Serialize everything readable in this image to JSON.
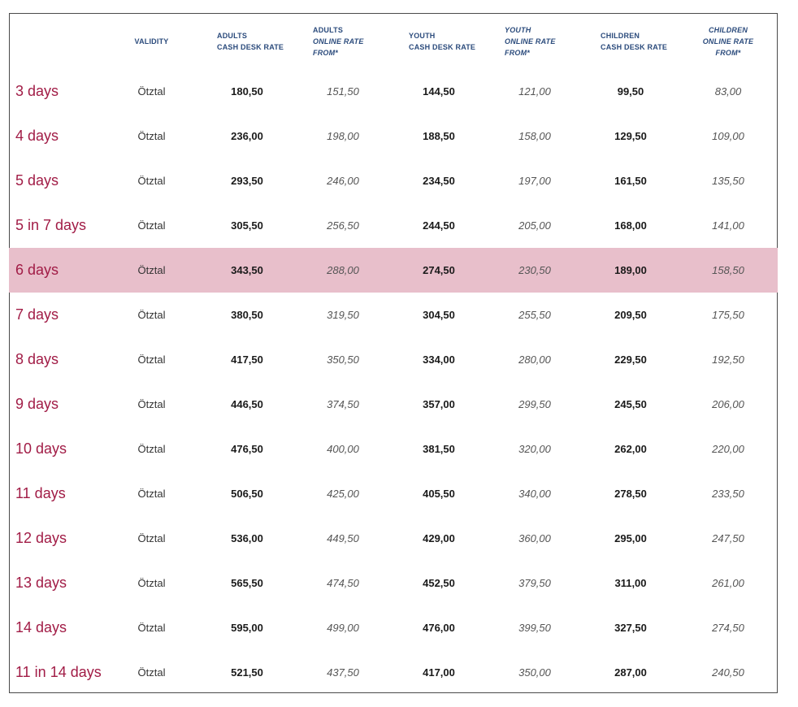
{
  "table": {
    "headers": [
      {
        "line1": "",
        "line2": "",
        "line3": ""
      },
      {
        "line1": "VALIDITY",
        "line2": "",
        "line3": ""
      },
      {
        "line1": "ADULTS",
        "line2": "CASH DESK RATE",
        "line3": ""
      },
      {
        "line1": "ADULTS",
        "line2": "ONLINE RATE",
        "line3": "FROM*"
      },
      {
        "line1": "YOUTH",
        "line2": "CASH DESK RATE",
        "line3": ""
      },
      {
        "line1": "YOUTH",
        "line2": "ONLINE RATE",
        "line3": "FROM*"
      },
      {
        "line1": "CHILDREN",
        "line2": "CASH DESK RATE",
        "line3": ""
      },
      {
        "line1": "CHILDREN",
        "line2": "ONLINE RATE",
        "line3": "FROM*"
      }
    ],
    "rows": [
      [
        "3 days",
        "Ötztal",
        "180,50",
        "151,50",
        "144,50",
        "121,00",
        "99,50",
        "83,00"
      ],
      [
        "4 days",
        "Ötztal",
        "236,00",
        "198,00",
        "188,50",
        "158,00",
        "129,50",
        "109,00"
      ],
      [
        "5 days",
        "Ötztal",
        "293,50",
        "246,00",
        "234,50",
        "197,00",
        "161,50",
        "135,50"
      ],
      [
        "5 in 7 days",
        "Ötztal",
        "305,50",
        "256,50",
        "244,50",
        "205,00",
        "168,00",
        "141,00"
      ],
      [
        "6 days",
        "Ötztal",
        "343,50",
        "288,00",
        "274,50",
        "230,50",
        "189,00",
        "158,50"
      ],
      [
        "7 days",
        "Ötztal",
        "380,50",
        "319,50",
        "304,50",
        "255,50",
        "209,50",
        "175,50"
      ],
      [
        "8 days",
        "Ötztal",
        "417,50",
        "350,50",
        "334,00",
        "280,00",
        "229,50",
        "192,50"
      ],
      [
        "9 days",
        "Ötztal",
        "446,50",
        "374,50",
        "357,00",
        "299,50",
        "245,50",
        "206,00"
      ],
      [
        "10 days",
        "Ötztal",
        "476,50",
        "400,00",
        "381,50",
        "320,00",
        "262,00",
        "220,00"
      ],
      [
        "11 days",
        "Ötztal",
        "506,50",
        "425,00",
        "405,50",
        "340,00",
        "278,50",
        "233,50"
      ],
      [
        "12 days",
        "Ötztal",
        "536,00",
        "449,50",
        "429,00",
        "360,00",
        "295,00",
        "247,50"
      ],
      [
        "13 days",
        "Ötztal",
        "565,50",
        "474,50",
        "452,50",
        "379,50",
        "311,00",
        "261,00"
      ],
      [
        "14 days",
        "Ötztal",
        "595,00",
        "499,00",
        "476,00",
        "399,50",
        "327,50",
        "274,50"
      ],
      [
        "11 in 14 days",
        "Ötztal",
        "521,50",
        "437,50",
        "417,00",
        "350,00",
        "287,00",
        "240,50"
      ]
    ],
    "highlighted_row": 4
  },
  "colors": {
    "duration_text": "#a11c46",
    "header_text": "#2b4b7c",
    "highlight_row": "#e8bfcb"
  }
}
